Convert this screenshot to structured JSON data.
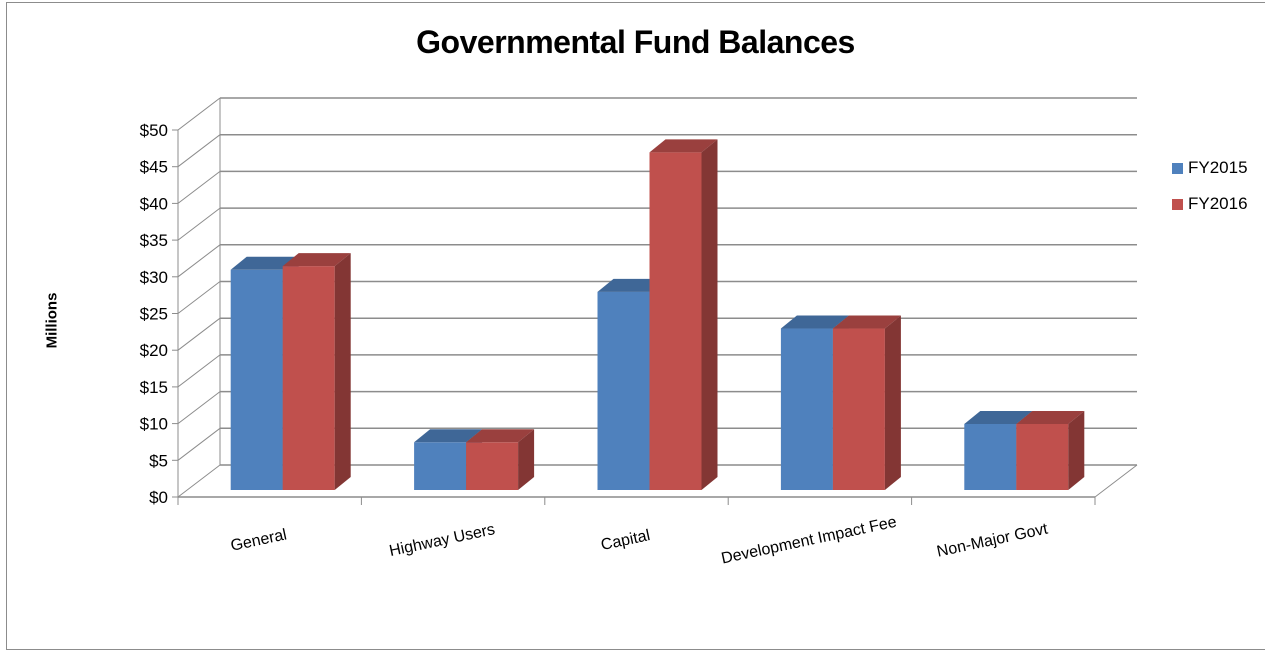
{
  "chart_data": {
    "type": "bar",
    "title": "Governmental Fund Balances",
    "ylabel": "Millions",
    "xlabel": "",
    "categories": [
      "General",
      "Highway Users",
      "Capital",
      "Development Impact Fee",
      "Non-Major Govt"
    ],
    "series": [
      {
        "name": "FY2015",
        "color": "#4f81bd",
        "values": [
          30,
          6.5,
          27,
          22,
          9
        ]
      },
      {
        "name": "FY2016",
        "color": "#c0504d",
        "values": [
          30.5,
          6.5,
          46,
          22,
          9
        ]
      }
    ],
    "ylim": [
      0,
      50
    ],
    "yticks": [
      "$0",
      "$5",
      "$10",
      "$15",
      "$20",
      "$25",
      "$30",
      "$35",
      "$40",
      "$45",
      "$50"
    ],
    "grid": true,
    "legend": "right",
    "style": "3d-clustered-column"
  }
}
